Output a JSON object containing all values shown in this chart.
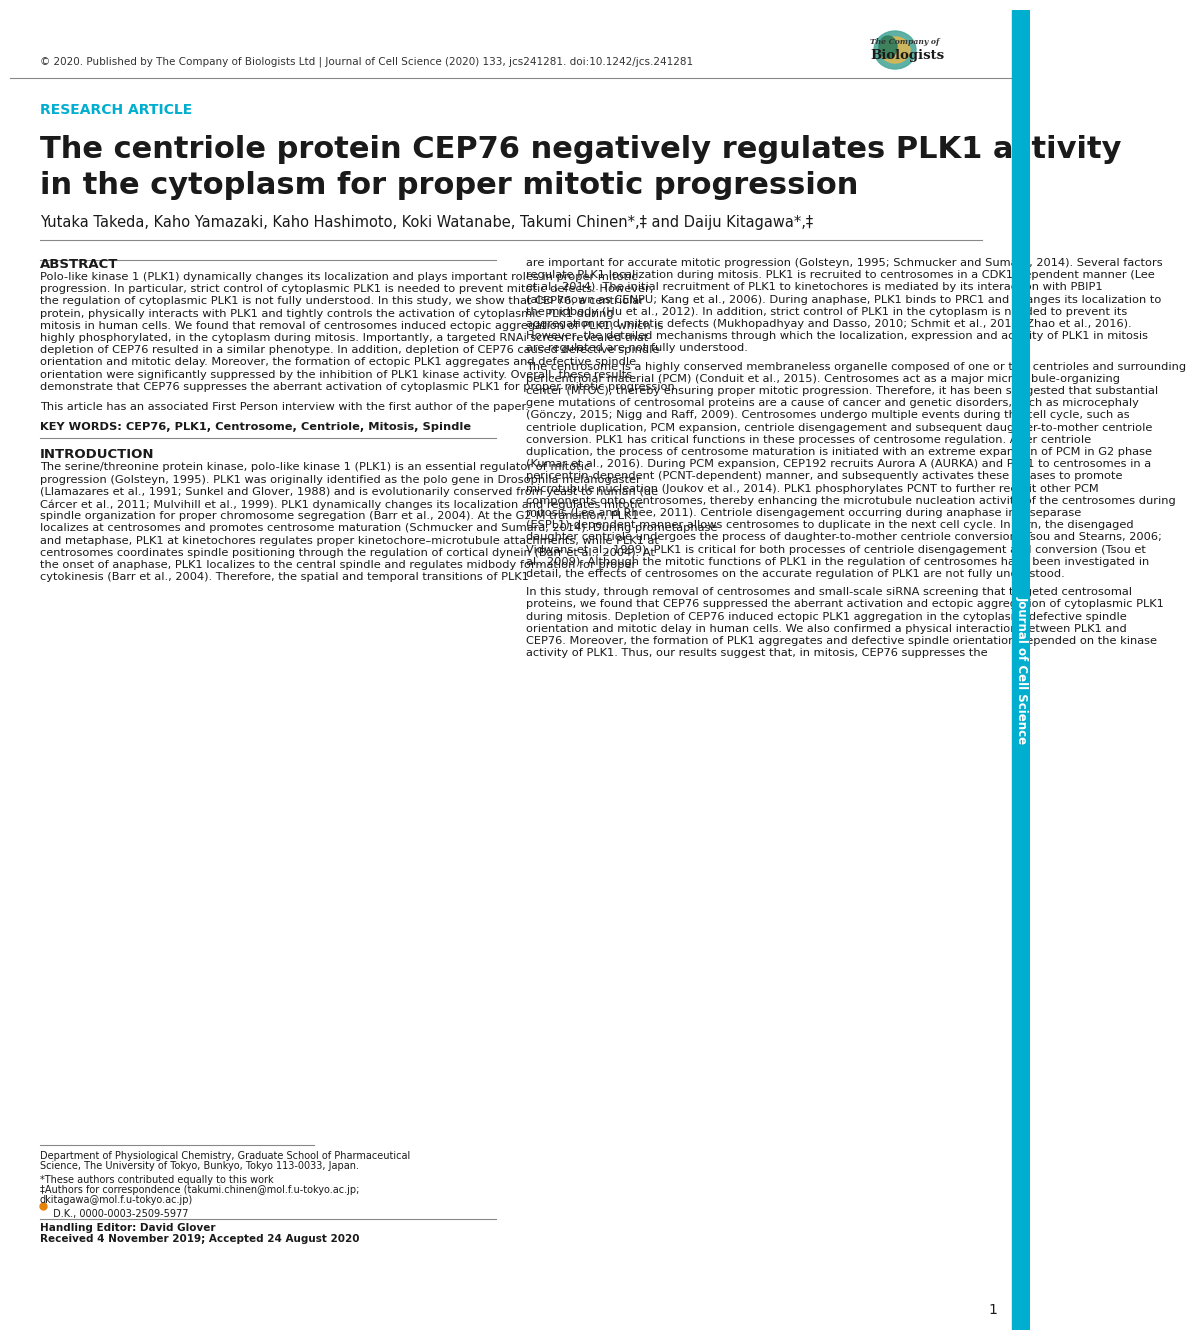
{
  "header_text": "© 2020. Published by The Company of Biologists Ltd | Journal of Cell Science (2020) 133, jcs241281. doi:10.1242/jcs.241281",
  "section_label": "RESEARCH ARTICLE",
  "section_label_color": "#00AECF",
  "title_line1": "The centriole protein CEP76 negatively regulates PLK1 activity",
  "title_line2": "in the cytoplasm for proper mitotic progression",
  "authors": "Yutaka Takeda, Kaho Yamazaki, Kaho Hashimoto, Koki Watanabe, Takumi Chinen*,‡ and Daiju Kitagawa*,‡",
  "abstract_title": "ABSTRACT",
  "abstract_text": "Polo-like kinase 1 (PLK1) dynamically changes its localization and plays important roles in proper mitotic progression. In particular, strict control of cytoplasmic PLK1 is needed to prevent mitotic defects. However, the regulation of cytoplasmic PLK1 is not fully understood. In this study, we show that CEP76, a centriolar protein, physically interacts with PLK1 and tightly controls the activation of cytoplasmic PLK1 during mitosis in human cells. We found that removal of centrosomes induced ectopic aggregation of PLK1, which is highly phosphorylated, in the cytoplasm during mitosis. Importantly, a targeted RNAi screen revealed that depletion of CEP76 resulted in a similar phenotype. In addition, depletion of CEP76 caused defective spindle orientation and mitotic delay. Moreover, the formation of ectopic PLK1 aggregates and defective spindle orientation were significantly suppressed by the inhibition of PLK1 kinase activity. Overall, these results demonstrate that CEP76 suppresses the aberrant activation of cytoplasmic PLK1 for proper mitotic progression.",
  "first_person_text": "This article has an associated First Person interview with the first author of the paper.",
  "keywords_label": "KEY WORDS: ",
  "keywords_text": "CEP76, PLK1, Centrosome, Centriole, Mitosis, Spindle",
  "intro_title": "INTRODUCTION",
  "intro_text": "The serine/threonine protein kinase, polo-like kinase 1 (PLK1) is an essential regulator of mitotic progression (Golsteyn, 1995). PLK1 was originally identified as the polo gene in Drosophila melanogaster (Llamazares et al., 1991; Sunkel and Glover, 1988) and is evolutionarily conserved from yeast to human (de Cárcer et al., 2011; Mulvihill et al., 1999). PLK1 dynamically changes its localization and regulates mitotic spindle organization for proper chromosome segregation (Barr et al., 2004). At the G2-M transition, PLK1 localizes at centrosomes and promotes centrosome maturation (Schmucker and Sumara, 2014). During prometaphase and metaphase, PLK1 at kinetochores regulates proper kinetochore–microtubule attachments, while PLK1 at centrosomes coordinates spindle positioning through the regulation of cortical dynein (Barr et al., 2004). At the onset of anaphase, PLK1 localizes to the central spindle and regulates midbody formation for proper cytokinesis (Barr et al., 2004). Therefore, the spatial and temporal transitions of PLK1",
  "right_col_intro": "are important for accurate mitotic progression (Golsteyn, 1995; Schmucker and Sumara, 2014). Several factors regulate PLK1 localization during mitosis. PLK1 is recruited to centrosomes in a CDK1-dependent manner (Lee et al., 2014). The initial recruitment of PLK1 to kinetochores is mediated by its interaction with PBIP1 (also known as CENPU; Kang et al., 2006). During anaphase, PLK1 binds to PRC1 and changes its localization to the midbody (Hu et al., 2012). In addition, strict control of PLK1 in the cytoplasm is needed to prevent its aggregation and mitotic defects (Mukhopadhyay and Dasso, 2010; Schmit et al., 2012; Zhao et al., 2016). However, the detailed mechanisms through which the localization, expression and activity of PLK1 in mitosis are regulated are not fully understood.",
  "right_col_para2": "The centrosome is a highly conserved membraneless organelle composed of one or two centrioles and surrounding pericentriolar material (PCM) (Conduit et al., 2015). Centrosomes act as a major microtubule-organizing center (MTOC), thereby ensuring proper mitotic progression. Therefore, it has been suggested that substantial gene mutations of centrosomal proteins are a cause of cancer and genetic disorders, such as microcephaly (Gönczy, 2015; Nigg and Raff, 2009). Centrosomes undergo multiple events during the cell cycle, such as centriole duplication, PCM expansion, centriole disengagement and subsequent daughter-to-mother centriole conversion. PLK1 has critical functions in these processes of centrosome regulation. After centriole duplication, the process of centrosome maturation is initiated with an extreme expansion of PCM in G2 phase (Kumar et al., 2016). During PCM expansion, CEP192 recruits Aurora A (AURKA) and PLK1 to centrosomes in a pericentrin-dependent (PCNT-dependent) manner, and subsequently activates these kinases to promote microtubule nucleation (Joukov et al., 2014). PLK1 phosphorylates PCNT to further recruit other PCM components onto centrosomes, thereby enhancing the microtubule nucleation activity of the centrosomes during mitosis (Lee and Rhee, 2011). Centriole disengagement occurring during anaphase in a separase (ESPL1)-dependent manner allows centrosomes to duplicate in the next cell cycle. In turn, the disengaged daughter centriole undergoes the process of daughter-to-mother centriole conversion (Tsou and Stearns, 2006; Vidwans et al., 1999). PLK1 is critical for both processes of centriole disengagement and conversion (Tsou et al., 2009). Although the mitotic functions of PLK1 in the regulation of centrosomes have been investigated in detail, the effects of centrosomes on the accurate regulation of PLK1 are not fully understood.",
  "right_col_para3": "In this study, through removal of centrosomes and small-scale siRNA screening that targeted centrosomal proteins, we found that CEP76 suppressed the aberrant activation and ectopic aggregation of cytoplasmic PLK1 during mitosis. Depletion of CEP76 induced ectopic PLK1 aggregation in the cytoplasm, defective spindle orientation and mitotic delay in human cells. We also confirmed a physical interaction between PLK1 and CEP76. Moreover, the formation of PLK1 aggregates and defective spindle orientation depended on the kinase activity of PLK1. Thus, our results suggest that, in mitosis, CEP76 suppresses the",
  "affiliation": "Department of Physiological Chemistry, Graduate School of Pharmaceutical\nScience, The University of Tokyo, Bunkyo, Tokyo 113-0033, Japan.",
  "footnote1": "*These authors contributed equally to this work",
  "footnote2": "‡Authors for correspondence (takumi.chinen@mol.f.u-tokyo.ac.jp;\ndkitagawa@mol.f.u-tokyo.ac.jp)",
  "orcid": "● D.K., 0000-0003-2509-5977",
  "handling_editor": "Handling Editor: David Glover",
  "received": "Received 4 November 2019; Accepted 24 August 2020",
  "page_number": "1",
  "sidebar_color": "#00AECF",
  "sidebar_text": "Journal of Cell Science",
  "bg_color": "#ffffff",
  "text_color": "#000000"
}
